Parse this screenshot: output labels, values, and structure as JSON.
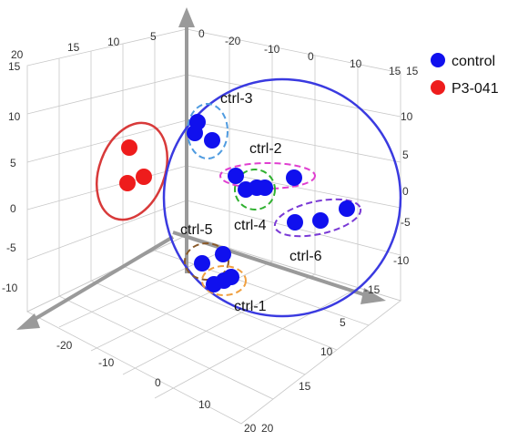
{
  "chart_data": {
    "type": "scatter",
    "projection": "3d",
    "legend": [
      {
        "name": "control",
        "color": "#1010ee"
      },
      {
        "name": "P3-041",
        "color": "#ee1c1c"
      }
    ],
    "legend_placement": "top-right",
    "grid": true,
    "series": [
      {
        "name": "P3-041",
        "color": "#ee1c1c",
        "points": 3
      },
      {
        "name": "control",
        "color": "#1010ee",
        "points": 18
      }
    ],
    "cluster_labels": [
      "ctrl-3",
      "ctrl-2",
      "ctrl-4",
      "ctrl-5",
      "ctrl-6",
      "ctrl-1"
    ],
    "axis_ticks": {
      "upper_left_axis": [
        "20",
        "15",
        "10",
        "5"
      ],
      "top_axis": [
        "0",
        "-20",
        "-10",
        "0",
        "10",
        "15"
      ],
      "left_axis": [
        "15",
        "10",
        "5",
        "0",
        "-5",
        "-10"
      ],
      "right_axis": [
        "15",
        "10",
        "5",
        "0",
        "-5",
        "-10",
        "-15"
      ],
      "bottom_left_axis": [
        "-20",
        "-10",
        "0",
        "10",
        "20"
      ],
      "bottom_right_axis": [
        "5",
        "10",
        "15",
        "20"
      ]
    }
  }
}
